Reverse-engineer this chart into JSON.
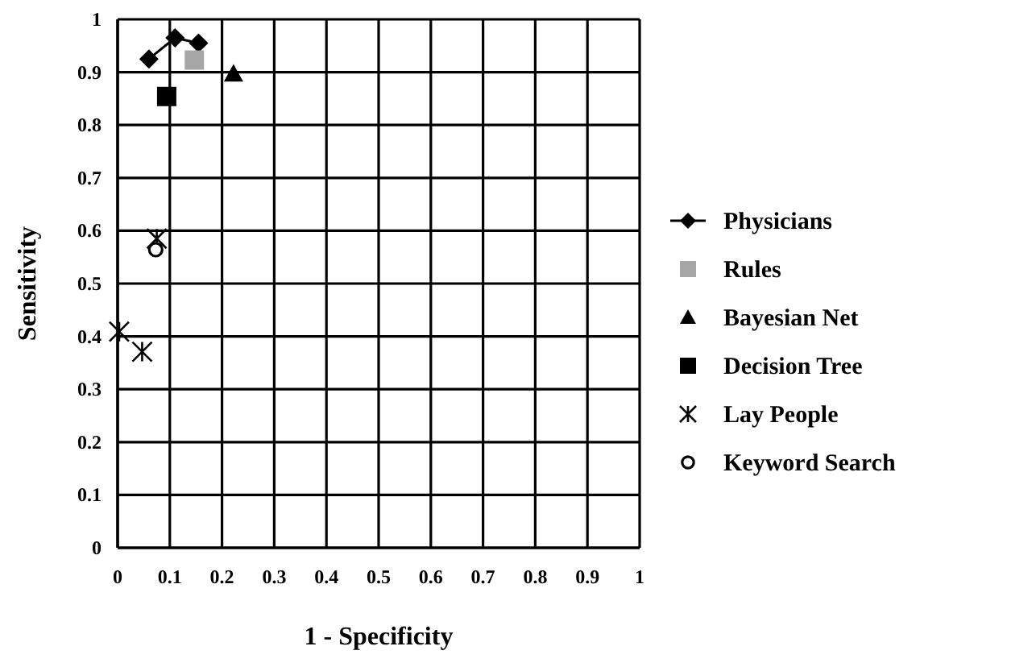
{
  "chart_data": {
    "type": "scatter",
    "xlabel": "1 - Specificity",
    "ylabel": "Sensitivity",
    "xlim": [
      0,
      1
    ],
    "ylim": [
      0,
      1
    ],
    "xticks": [
      0,
      0.1,
      0.2,
      0.3,
      0.4,
      0.5,
      0.6,
      0.7,
      0.8,
      0.9,
      1
    ],
    "yticks": [
      0,
      0.1,
      0.2,
      0.3,
      0.4,
      0.5,
      0.6,
      0.7,
      0.8,
      0.9,
      1
    ],
    "grid": true,
    "legend": "right",
    "series": [
      {
        "name": "Physicians",
        "type": "line",
        "marker": "diamond",
        "color": "#000000",
        "x": [
          0.06,
          0.11,
          0.155
        ],
        "values": [
          0.925,
          0.965,
          0.955
        ]
      },
      {
        "name": "Rules",
        "marker": "square",
        "color": "#a6a6a6",
        "x": [
          0.147
        ],
        "values": [
          0.923
        ]
      },
      {
        "name": "Bayesian Net",
        "marker": "triangle",
        "color": "#000000",
        "x": [
          0.222
        ],
        "values": [
          0.897
        ]
      },
      {
        "name": "Decision Tree",
        "marker": "square",
        "color": "#000000",
        "x": [
          0.094
        ],
        "values": [
          0.854
        ]
      },
      {
        "name": "Lay People",
        "marker": "cross",
        "color": "#000000",
        "x": [
          0.075,
          0.003,
          0.047
        ],
        "values": [
          0.585,
          0.409,
          0.371
        ]
      },
      {
        "name": "Keyword Search",
        "marker": "circle",
        "color": "#000000",
        "x": [
          0.073
        ],
        "values": [
          0.564
        ]
      }
    ]
  }
}
